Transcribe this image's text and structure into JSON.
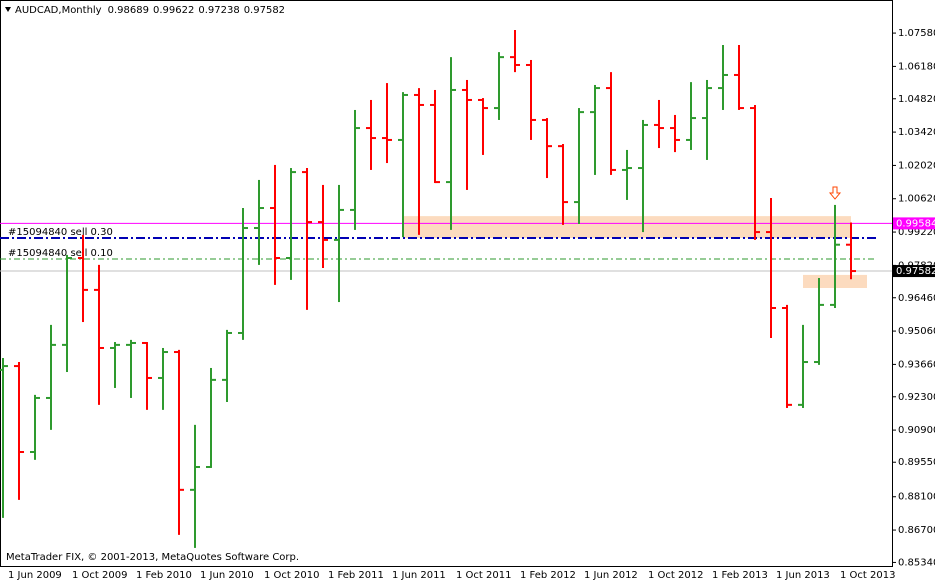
{
  "chart_data": {
    "type": "ohlc",
    "title": "AUDCAD,Monthly",
    "footer": "MetaTrader FIX, © 2001-2013, MetaQuotes Software Corp.",
    "categories": [
      "1 Jun 2009",
      null,
      null,
      null,
      "1 Oct 2009",
      null,
      null,
      null,
      "1 Feb 2010",
      null,
      null,
      null,
      "1 Jun 2010",
      null,
      null,
      null,
      "1 Oct 2010",
      null,
      null,
      null,
      "1 Feb 2011",
      null,
      null,
      null,
      "1 Jun 2011",
      null,
      null,
      null,
      "1 Oct 2011",
      null,
      null,
      null,
      "1 Feb 2012",
      null,
      null,
      null,
      "1 Jun 2012",
      null,
      null,
      null,
      "1 Oct 2012",
      null,
      null,
      null,
      "1 Feb 2013",
      null,
      null,
      null,
      "1 Jun 2013",
      null,
      null,
      null,
      "1 Oct 2013",
      null
    ],
    "open": [
      0.9343,
      0.9359,
      0.8998,
      0.9225,
      0.9448,
      0.9813,
      0.9679,
      0.9435,
      0.9448,
      0.9456,
      0.9309,
      0.9418,
      0.8839,
      0.8935,
      0.9301,
      0.9498,
      0.9939,
      1.0023,
      0.9813,
      1.0174,
      0.9964,
      0.9889,
      1.0015,
      1.0359,
      1.0317,
      1.0309,
      1.0498,
      1.0456,
      1.0132,
      1.0519,
      1.0477,
      1.0443,
      1.0657,
      1.0624,
      1.0393,
      1.0283,
      1.0048,
      1.0426,
      1.0527,
      1.0183,
      1.0191,
      1.0372,
      1.0359,
      1.0309,
      1.0401,
      1.0527,
      1.0582,
      1.0443,
      0.9922,
      0.9603,
      0.9196,
      0.9376,
      0.9616,
      0.98689
    ],
    "high": [
      0.9393,
      0.9376,
      0.9238,
      0.9532,
      0.9826,
      0.991,
      0.9784,
      0.946,
      0.9469,
      0.946,
      0.9435,
      0.9427,
      0.9112,
      0.9351,
      0.9511,
      1.0023,
      1.0141,
      1.0204,
      1.0191,
      1.0191,
      1.012,
      1.012,
      1.0435,
      1.0477,
      1.0548,
      1.051,
      1.0527,
      1.0519,
      1.0657,
      1.0561,
      1.0485,
      1.0678,
      1.0771,
      1.0645,
      1.0401,
      1.0292,
      1.0443,
      1.054,
      1.0594,
      1.0267,
      1.0393,
      1.0477,
      1.0414,
      1.0552,
      1.0561,
      1.0708,
      1.0708,
      1.0456,
      1.0065,
      0.9616,
      0.9532,
      0.9729,
      1.0036,
      0.99622
    ],
    "low": [
      0.8721,
      0.8797,
      0.8965,
      0.9091,
      0.9334,
      0.9544,
      0.9196,
      0.9267,
      0.9225,
      0.9175,
      0.9175,
      0.865,
      0.8595,
      0.8931,
      0.9208,
      0.9469,
      0.9784,
      0.97,
      0.9721,
      0.9595,
      0.9771,
      0.9628,
      0.9931,
      1.0183,
      1.0212,
      0.9901,
      0.991,
      1.0128,
      0.9931,
      1.0099,
      1.0246,
      1.0393,
      1.0594,
      1.0309,
      1.0149,
      0.9952,
      0.9956,
      1.0162,
      1.0162,
      1.0057,
      0.9922,
      1.0275,
      1.0258,
      1.0267,
      1.0225,
      1.0435,
      1.0435,
      0.9889,
      0.9477,
      0.9183,
      0.9183,
      0.9364,
      0.9603,
      0.97238
    ],
    "close": [
      0.9359,
      0.8998,
      0.9225,
      0.9448,
      0.9813,
      0.9679,
      0.9435,
      0.9448,
      0.9456,
      0.9309,
      0.9418,
      0.8839,
      0.8935,
      0.9301,
      0.9498,
      0.9939,
      1.0023,
      0.9813,
      1.0174,
      0.9964,
      0.9889,
      1.0015,
      1.0359,
      1.0317,
      1.0309,
      1.0498,
      1.0456,
      1.0132,
      1.0519,
      1.0477,
      1.0443,
      1.0657,
      1.0624,
      1.0393,
      1.0283,
      1.0048,
      1.0426,
      1.0527,
      1.0183,
      1.0191,
      1.0372,
      1.0359,
      1.0309,
      1.0401,
      1.0527,
      1.0582,
      1.0443,
      0.9922,
      0.9603,
      0.9196,
      0.9376,
      0.9616,
      0.98689,
      0.97582
    ],
    "up_color": "#2e9a2e",
    "down_color": "#ff0000",
    "ylim": [
      0.8519,
      1.0897
    ],
    "yticks": [
      {
        "value": 1.0758,
        "label": "1.07580"
      },
      {
        "value": 1.0618,
        "label": "1.06180"
      },
      {
        "value": 1.0482,
        "label": "1.04820"
      },
      {
        "value": 1.0342,
        "label": "1.03420"
      },
      {
        "value": 1.0202,
        "label": "1.02020"
      },
      {
        "value": 1.0062,
        "label": "1.00620"
      },
      {
        "value": 0.9922,
        "label": "0.99220"
      },
      {
        "value": 0.9782,
        "label": "0.97820"
      },
      {
        "value": 0.9646,
        "label": "0.96460"
      },
      {
        "value": 0.9506,
        "label": "0.95060"
      },
      {
        "value": 0.9366,
        "label": "0.93660"
      },
      {
        "value": 0.923,
        "label": "0.92300"
      },
      {
        "value": 0.909,
        "label": "0.90900"
      },
      {
        "value": 0.8955,
        "label": "0.89550"
      },
      {
        "value": 0.881,
        "label": "0.88100"
      },
      {
        "value": 0.867,
        "label": "0.86700"
      },
      {
        "value": 0.8534,
        "label": "0.85340"
      }
    ],
    "price_lines": [
      {
        "value": 0.99584,
        "color": "#ff00ff",
        "box_color": "#ff00ff"
      },
      {
        "value": 0.97582,
        "color": "#c0c0c0",
        "box_color": "#000000"
      }
    ],
    "orders": [
      {
        "label": "#15094840 sell 0.30",
        "value": 0.9897,
        "color": "#0000b4"
      },
      {
        "label": "#15094840 sell 0.10",
        "value": 0.9809,
        "color": "#2e9a2e"
      }
    ],
    "zones": [
      {
        "x": [
          25,
          53
        ],
        "y": [
          0.9897,
          0.9989
        ]
      },
      {
        "x": [
          50,
          54
        ],
        "y": [
          0.9687,
          0.9742
        ]
      }
    ],
    "zone_color": "#fcd5b4",
    "arrow": {
      "x": 52,
      "y": 1.0086,
      "color": "#ff4500"
    }
  }
}
